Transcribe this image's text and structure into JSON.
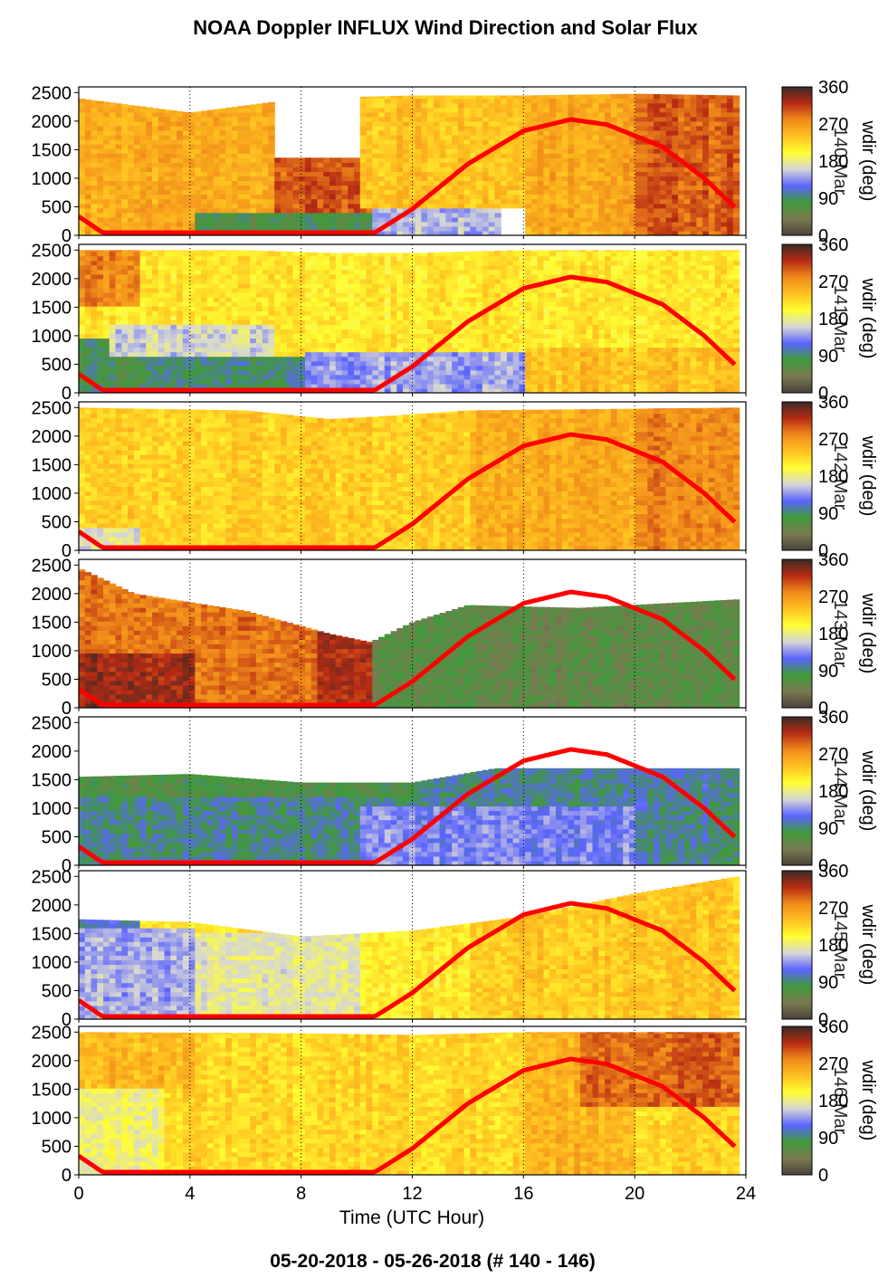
{
  "title": "NOAA Doppler INFLUX Wind Direction and Solar Flux",
  "footer": "05-20-2018 - 05-26-2018   (# 140 - 146)",
  "colors": {
    "solar_curve": "#ff0000",
    "colormap": [
      "#4a4238",
      "#7a7a52",
      "#3f9a3a",
      "#5b64ff",
      "#d6d6d6",
      "#ffff33",
      "#ffc020",
      "#f08a1a",
      "#b82b14",
      "#3a2a24"
    ]
  },
  "chart_data": [
    {
      "type": "heatmap",
      "panel_label": "140-Mar",
      "x_range": [
        0,
        24
      ],
      "y_range": [
        0,
        2600
      ],
      "x_ticks": [
        0,
        4,
        8,
        12,
        16,
        20,
        24
      ],
      "y_ticks": [
        0,
        500,
        1000,
        1500,
        2000,
        2500
      ],
      "colorbar": {
        "label": "wdir (deg)",
        "range": [
          0,
          360
        ],
        "ticks": [
          0,
          90,
          180,
          270,
          360
        ]
      },
      "data_top_m": [
        [
          0,
          2400
        ],
        [
          4,
          2150
        ],
        [
          8,
          2400
        ],
        [
          12,
          2450
        ],
        [
          16,
          2450
        ],
        [
          20,
          2480
        ],
        [
          23.7,
          2450
        ]
      ],
      "zones": [
        {
          "x0": 0,
          "x1": 7,
          "z0": 0,
          "z1": 2600,
          "wdir": 255
        },
        {
          "x0": 4,
          "x1": 10.5,
          "z0": 0,
          "z1": 400,
          "wdir": 75
        },
        {
          "x0": 7,
          "x1": 10.5,
          "z0": 400,
          "z1": 1300,
          "wdir": 300
        },
        {
          "x0": 10.5,
          "x1": 15,
          "z0": 0,
          "z1": 450,
          "wdir": 150
        },
        {
          "x0": 10,
          "x1": 16,
          "z0": 450,
          "z1": 2600,
          "wdir": 240
        },
        {
          "x0": 16,
          "x1": 20,
          "z0": 0,
          "z1": 2600,
          "wdir": 260
        },
        {
          "x0": 20,
          "x1": 24,
          "z0": 0,
          "z1": 2600,
          "wdir": 300
        }
      ]
    },
    {
      "type": "heatmap",
      "panel_label": "141-Mar",
      "x_range": [
        0,
        24
      ],
      "y_range": [
        0,
        2600
      ],
      "x_ticks": [
        0,
        4,
        8,
        12,
        16,
        20,
        24
      ],
      "y_ticks": [
        0,
        500,
        1000,
        1500,
        2000,
        2500
      ],
      "colorbar": {
        "label": "wdir (deg)",
        "range": [
          0,
          360
        ],
        "ticks": [
          0,
          90,
          180,
          270,
          360
        ]
      },
      "data_top_m": [
        [
          0,
          2500
        ],
        [
          6,
          2500
        ],
        [
          9,
          2450
        ],
        [
          12,
          2450
        ],
        [
          16,
          2500
        ],
        [
          20,
          2500
        ],
        [
          23.7,
          2500
        ]
      ],
      "zones": [
        {
          "x0": 0,
          "x1": 24,
          "z0": 0,
          "z1": 2600,
          "wdir": 215
        },
        {
          "x0": 0,
          "x1": 2,
          "z0": 1500,
          "z1": 2600,
          "wdir": 280
        },
        {
          "x0": 0,
          "x1": 3,
          "z0": 0,
          "z1": 900,
          "wdir": 80
        },
        {
          "x0": 1,
          "x1": 7,
          "z0": 600,
          "z1": 1200,
          "wdir": 160
        },
        {
          "x0": 2,
          "x1": 10,
          "z0": 0,
          "z1": 600,
          "wdir": 90
        },
        {
          "x0": 8,
          "x1": 16,
          "z0": 0,
          "z1": 700,
          "wdir": 140
        },
        {
          "x0": 16,
          "x1": 24,
          "z0": 0,
          "z1": 800,
          "wdir": 240
        }
      ]
    },
    {
      "type": "heatmap",
      "panel_label": "142-Mar",
      "x_range": [
        0,
        24
      ],
      "y_range": [
        0,
        2600
      ],
      "x_ticks": [
        0,
        4,
        8,
        12,
        16,
        20,
        24
      ],
      "y_ticks": [
        0,
        500,
        1000,
        1500,
        2000,
        2500
      ],
      "colorbar": {
        "label": "wdir (deg)",
        "range": [
          0,
          360
        ],
        "ticks": [
          0,
          90,
          180,
          270,
          360
        ]
      },
      "data_top_m": [
        [
          0,
          2500
        ],
        [
          6,
          2450
        ],
        [
          9,
          2300
        ],
        [
          11,
          2350
        ],
        [
          14,
          2450
        ],
        [
          20,
          2480
        ],
        [
          23.7,
          2500
        ]
      ],
      "zones": [
        {
          "x0": 0,
          "x1": 24,
          "z0": 0,
          "z1": 2600,
          "wdir": 230
        },
        {
          "x0": 0,
          "x1": 2,
          "z0": 0,
          "z1": 400,
          "wdir": 170
        },
        {
          "x0": 14,
          "x1": 20,
          "z0": 0,
          "z1": 2600,
          "wdir": 255
        },
        {
          "x0": 20,
          "x1": 24,
          "z0": 0,
          "z1": 2600,
          "wdir": 280
        }
      ]
    },
    {
      "type": "heatmap",
      "panel_label": "143-Mar",
      "x_range": [
        0,
        24
      ],
      "y_range": [
        0,
        2600
      ],
      "x_ticks": [
        0,
        4,
        8,
        12,
        16,
        20,
        24
      ],
      "y_ticks": [
        0,
        500,
        1000,
        1500,
        2000,
        2500
      ],
      "colorbar": {
        "label": "wdir (deg)",
        "range": [
          0,
          360
        ],
        "ticks": [
          0,
          90,
          180,
          270,
          360
        ]
      },
      "data_top_m": [
        [
          0,
          2450
        ],
        [
          2,
          2000
        ],
        [
          6,
          1700
        ],
        [
          9,
          1300
        ],
        [
          10.5,
          1150
        ],
        [
          12,
          1500
        ],
        [
          14,
          1800
        ],
        [
          18,
          1750
        ],
        [
          23.7,
          1900
        ]
      ],
      "zones": [
        {
          "x0": 0,
          "x1": 9,
          "z0": 0,
          "z1": 2600,
          "wdir": 290
        },
        {
          "x0": 0,
          "x1": 4,
          "z0": 0,
          "z1": 900,
          "wdir": 330
        },
        {
          "x0": 8.5,
          "x1": 11,
          "z0": 0,
          "z1": 2600,
          "wdir": 320
        },
        {
          "x0": 10.5,
          "x1": 24,
          "z0": 0,
          "z1": 2600,
          "wdir": 60
        }
      ]
    },
    {
      "type": "heatmap",
      "panel_label": "144-Mar",
      "x_range": [
        0,
        24
      ],
      "y_range": [
        0,
        2600
      ],
      "x_ticks": [
        0,
        4,
        8,
        12,
        16,
        20,
        24
      ],
      "y_ticks": [
        0,
        500,
        1000,
        1500,
        2000,
        2500
      ],
      "colorbar": {
        "label": "wdir (deg)",
        "range": [
          0,
          360
        ],
        "ticks": [
          0,
          90,
          180,
          270,
          360
        ]
      },
      "data_top_m": [
        [
          0,
          1550
        ],
        [
          4,
          1600
        ],
        [
          8,
          1450
        ],
        [
          12,
          1450
        ],
        [
          15,
          1700
        ],
        [
          23.7,
          1700
        ]
      ],
      "zones": [
        {
          "x0": 0,
          "x1": 24,
          "z0": 0,
          "z1": 2600,
          "wdir": 95
        },
        {
          "x0": 0,
          "x1": 12,
          "z0": 1200,
          "z1": 2600,
          "wdir": 70
        },
        {
          "x0": 10,
          "x1": 20,
          "z0": 0,
          "z1": 1000,
          "wdir": 130
        },
        {
          "x0": 16,
          "x1": 24,
          "z0": 1000,
          "z1": 2600,
          "wdir": 100
        }
      ]
    },
    {
      "type": "heatmap",
      "panel_label": "145-Mar",
      "x_range": [
        0,
        24
      ],
      "y_range": [
        0,
        2600
      ],
      "x_ticks": [
        0,
        4,
        8,
        12,
        16,
        20,
        24
      ],
      "y_ticks": [
        0,
        500,
        1000,
        1500,
        2000,
        2500
      ],
      "colorbar": {
        "label": "wdir (deg)",
        "range": [
          0,
          360
        ],
        "ticks": [
          0,
          90,
          180,
          270,
          360
        ]
      },
      "data_top_m": [
        [
          0,
          1750
        ],
        [
          4,
          1700
        ],
        [
          8,
          1450
        ],
        [
          12,
          1550
        ],
        [
          16,
          1800
        ],
        [
          20,
          2200
        ],
        [
          23.7,
          2500
        ]
      ],
      "zones": [
        {
          "x0": 0,
          "x1": 24,
          "z0": 0,
          "z1": 2600,
          "wdir": 215
        },
        {
          "x0": 0,
          "x1": 2,
          "z0": 800,
          "z1": 2600,
          "wdir": 110
        },
        {
          "x0": 0,
          "x1": 4,
          "z0": 0,
          "z1": 1600,
          "wdir": 145
        },
        {
          "x0": 4,
          "x1": 10,
          "z0": 0,
          "z1": 1500,
          "wdir": 175
        },
        {
          "x0": 14,
          "x1": 24,
          "z0": 0,
          "z1": 2600,
          "wdir": 235
        }
      ]
    },
    {
      "type": "heatmap",
      "panel_label": "146-Mar",
      "x_range": [
        0,
        24
      ],
      "y_range": [
        0,
        2600
      ],
      "x_ticks": [
        0,
        4,
        8,
        12,
        16,
        20,
        24
      ],
      "y_ticks": [
        0,
        500,
        1000,
        1500,
        2000,
        2500
      ],
      "colorbar": {
        "label": "wdir (deg)",
        "range": [
          0,
          360
        ],
        "ticks": [
          0,
          90,
          180,
          270,
          360
        ]
      },
      "data_top_m": [
        [
          0,
          2500
        ],
        [
          8,
          2480
        ],
        [
          12,
          2450
        ],
        [
          16,
          2500
        ],
        [
          23.7,
          2500
        ]
      ],
      "zones": [
        {
          "x0": 0,
          "x1": 24,
          "z0": 0,
          "z1": 2600,
          "wdir": 225
        },
        {
          "x0": 0,
          "x1": 3,
          "z0": 0,
          "z1": 1500,
          "wdir": 185
        },
        {
          "x0": 0,
          "x1": 4,
          "z0": 1500,
          "z1": 2600,
          "wdir": 245
        },
        {
          "x0": 16,
          "x1": 20,
          "z0": 0,
          "z1": 2600,
          "wdir": 250
        },
        {
          "x0": 18,
          "x1": 24,
          "z0": 1200,
          "z1": 2600,
          "wdir": 295
        }
      ]
    }
  ],
  "solar_flux_curve": {
    "description": "overplotted on every panel, drawn in y-axis units",
    "points": [
      [
        0,
        330
      ],
      [
        1,
        0
      ],
      [
        10.5,
        0
      ],
      [
        12,
        460
      ],
      [
        14,
        1250
      ],
      [
        16,
        1830
      ],
      [
        17.7,
        2030
      ],
      [
        19,
        1940
      ],
      [
        21,
        1550
      ],
      [
        22.5,
        1000
      ],
      [
        23.7,
        450
      ]
    ]
  },
  "xlabel": "Time (UTC Hour)"
}
